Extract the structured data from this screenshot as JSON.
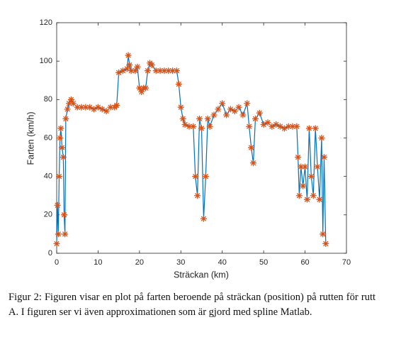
{
  "chart_data": {
    "type": "line",
    "xlabel": "Sträckan (km)",
    "ylabel": "Farten (km/h)",
    "xlim": [
      0,
      70
    ],
    "xticks": [
      0,
      10,
      20,
      30,
      40,
      50,
      60,
      70
    ],
    "ylim": [
      0,
      120
    ],
    "yticks": [
      0,
      20,
      40,
      60,
      80,
      100,
      120
    ],
    "grid": false,
    "x": [
      0,
      0.2,
      0.4,
      0.6,
      0.8,
      1.0,
      1.3,
      1.6,
      1.8,
      2.0,
      2.2,
      2.6,
      3,
      3.5,
      4,
      5,
      6,
      7,
      8,
      9,
      10,
      11,
      12,
      13,
      14,
      14.5,
      15,
      16,
      17,
      17.3,
      17.6,
      18,
      19,
      19.5,
      20,
      20.5,
      21,
      21.5,
      22,
      22.5,
      23,
      24,
      25,
      26,
      27,
      28,
      29,
      29.5,
      30,
      30.5,
      31,
      32,
      33,
      33.5,
      34,
      34.5,
      35,
      35.5,
      36,
      36.5,
      37,
      38,
      39,
      40,
      41,
      42,
      43,
      44,
      45,
      46,
      46.5,
      47,
      47.5,
      48,
      49,
      50,
      51,
      52,
      53,
      54,
      55,
      56,
      57,
      58,
      58.3,
      58.6,
      59,
      59.5,
      60,
      60.5,
      61,
      61.5,
      62,
      62.5,
      63,
      63.5,
      64,
      64.3,
      64.6,
      65
    ],
    "series": [
      {
        "color": "#0072bd",
        "marker_color": "#d95319",
        "marker": "asterisk",
        "values": [
          5,
          25,
          10,
          40,
          60,
          65,
          55,
          50,
          20,
          10,
          70,
          75,
          78,
          80,
          78,
          76,
          76,
          76,
          76,
          75,
          76,
          75,
          74,
          76,
          76,
          77,
          94,
          95,
          96,
          103,
          98,
          95,
          95,
          97,
          86,
          84,
          86,
          86,
          95,
          99,
          98,
          95,
          95,
          95,
          95,
          95,
          95,
          88,
          76,
          70,
          67,
          66,
          66,
          40,
          30,
          70,
          65,
          18,
          40,
          70,
          66,
          72,
          75,
          78,
          72,
          75,
          74,
          76,
          72,
          78,
          66,
          55,
          47,
          70,
          73,
          67,
          68,
          66,
          67,
          66,
          65,
          66,
          66,
          66,
          50,
          30,
          45,
          35,
          45,
          28,
          65,
          40,
          30,
          65,
          45,
          28,
          60,
          10,
          50,
          5
        ]
      }
    ]
  },
  "caption": "Figur 2: Figuren visar en plot på farten beroende på sträckan (position) på rutten för rutt A. I figuren ser vi även approximationen som är gjord med spline Matlab."
}
